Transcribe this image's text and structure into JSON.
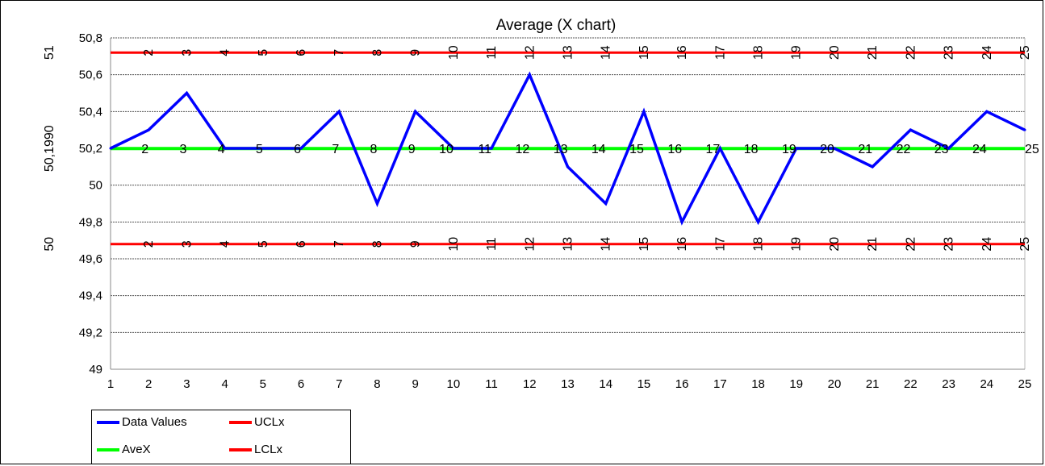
{
  "chart_data": {
    "type": "line",
    "title": "Average (X chart)",
    "x": [
      1,
      2,
      3,
      4,
      5,
      6,
      7,
      8,
      9,
      10,
      11,
      12,
      13,
      14,
      15,
      16,
      17,
      18,
      19,
      20,
      21,
      22,
      23,
      24,
      25
    ],
    "ylim": [
      49,
      50.8
    ],
    "y_ticks": [
      "49",
      "49,2",
      "49,4",
      "49,6",
      "49,8",
      "50",
      "50,2",
      "50,4",
      "50,6",
      "50,8"
    ],
    "y_tick_values": [
      49,
      49.2,
      49.4,
      49.6,
      49.8,
      50,
      50.2,
      50.4,
      50.6,
      50.8
    ],
    "x_ticks": [
      "1",
      "2",
      "3",
      "4",
      "5",
      "6",
      "7",
      "8",
      "9",
      "10",
      "11",
      "12",
      "13",
      "14",
      "15",
      "16",
      "17",
      "18",
      "19",
      "20",
      "21",
      "22",
      "23",
      "24",
      "25"
    ],
    "series": [
      {
        "name": "Data Values",
        "color": "#0000ff",
        "values": [
          50.2,
          50.3,
          50.5,
          50.2,
          50.2,
          50.2,
          50.4,
          49.9,
          50.4,
          50.2,
          50.2,
          50.6,
          50.1,
          49.9,
          50.4,
          49.8,
          50.2,
          49.8,
          50.2,
          50.2,
          50.1,
          50.3,
          50.2,
          50.4,
          50.3
        ]
      },
      {
        "name": "UCLx",
        "color": "#ff0000",
        "value": 50.72
      },
      {
        "name": "AveX",
        "color": "#00ff00",
        "value": 50.199
      },
      {
        "name": "LCLx",
        "color": "#ff0000",
        "value": 49.68
      }
    ],
    "point_labels": [
      "2",
      "3",
      "4",
      "5",
      "6",
      "7",
      "8",
      "9",
      "10",
      "11",
      "12",
      "13",
      "14",
      "15",
      "16",
      "17",
      "18",
      "19",
      "20",
      "21",
      "22",
      "23",
      "24",
      "25"
    ],
    "side_labels": {
      "ucl": "51",
      "ave": "50,1990",
      "lcl": "50"
    },
    "grid": true,
    "legend_position": "bottom-left"
  }
}
